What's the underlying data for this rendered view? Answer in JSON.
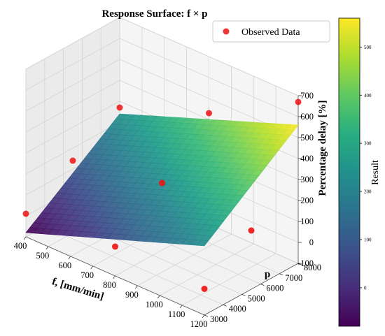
{
  "chart_data": {
    "type": "surface",
    "title": "Response Surface: f × p",
    "xlabel": "f, [mm/min]",
    "ylabel": "p",
    "zlabel": "Percentage delay [%]",
    "xlim": [
      400,
      1200
    ],
    "ylim": [
      3000,
      8000
    ],
    "zlim": [
      -100,
      700
    ],
    "x_ticks": [
      400,
      500,
      600,
      700,
      800,
      900,
      1000,
      1100,
      1200
    ],
    "y_ticks": [
      3000,
      4000,
      5000,
      6000,
      7000,
      8000
    ],
    "z_ticks": [
      -100,
      0,
      100,
      200,
      300,
      400,
      500,
      600,
      700
    ],
    "surface": {
      "corners": [
        {
          "f": 400,
          "p": 3000,
          "z": -80
        },
        {
          "f": 1200,
          "p": 3000,
          "z": 230
        },
        {
          "f": 400,
          "p": 8000,
          "z": 240
        },
        {
          "f": 1200,
          "p": 8000,
          "z": 560
        }
      ]
    },
    "series": [
      {
        "name": "Observed Data",
        "color": "#ee1111",
        "points": [
          {
            "f": 400,
            "p": 3000,
            "z": 10
          },
          {
            "f": 800,
            "p": 3000,
            "z": 40
          },
          {
            "f": 1200,
            "p": 3000,
            "z": 25
          },
          {
            "f": 400,
            "p": 5500,
            "z": 140
          },
          {
            "f": 800,
            "p": 5500,
            "z": 220
          },
          {
            "f": 1200,
            "p": 5500,
            "z": 180
          },
          {
            "f": 400,
            "p": 8000,
            "z": 270
          },
          {
            "f": 800,
            "p": 8000,
            "z": 430
          },
          {
            "f": 1200,
            "p": 8000,
            "z": 670
          }
        ]
      }
    ],
    "colorbar": {
      "label": "Result",
      "ticks": [
        0,
        100,
        200,
        300,
        400,
        500
      ],
      "range": [
        -80,
        560
      ],
      "colormap": "viridis"
    },
    "legend": {
      "position": "top-right"
    },
    "grid": true
  }
}
